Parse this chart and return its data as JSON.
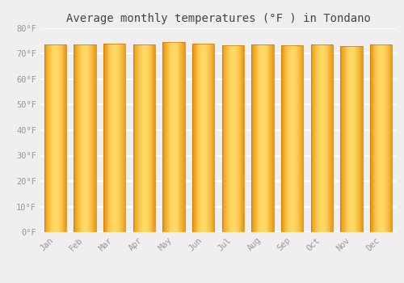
{
  "title": "Average monthly temperatures (°F ) in Tondano",
  "months": [
    "Jan",
    "Feb",
    "Mar",
    "Apr",
    "May",
    "Jun",
    "Jul",
    "Aug",
    "Sep",
    "Oct",
    "Nov",
    "Dec"
  ],
  "values": [
    73.6,
    73.6,
    74.1,
    73.8,
    74.5,
    74.1,
    73.2,
    73.6,
    73.2,
    73.6,
    72.9,
    73.6
  ],
  "ylim": [
    0,
    80
  ],
  "yticks": [
    0,
    10,
    20,
    30,
    40,
    50,
    60,
    70,
    80
  ],
  "ytick_labels": [
    "0°F",
    "10°F",
    "20°F",
    "30°F",
    "40°F",
    "50°F",
    "60°F",
    "70°F",
    "80°F"
  ],
  "background_color": "#f0eeee",
  "grid_color": "#ffffff",
  "title_fontsize": 10,
  "tick_fontsize": 7.5,
  "bar_width": 0.75,
  "bar_color_light": "#FFD966",
  "bar_color_dark": "#E8920A",
  "bar_edge_color": "#CC7700"
}
